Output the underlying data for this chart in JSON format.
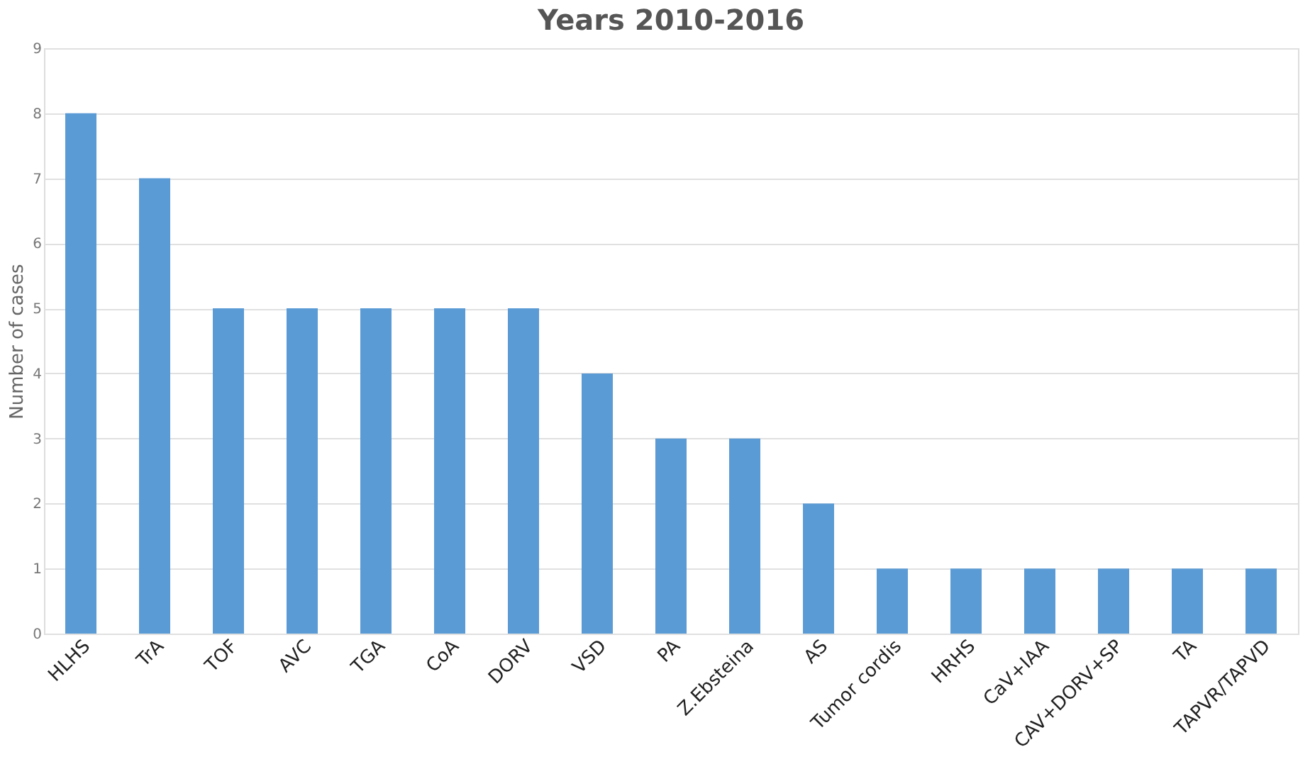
{
  "chart_data": {
    "type": "bar",
    "title": "Years  2010-2016",
    "ylabel": "Number of cases",
    "categories": [
      "HLHS",
      "TrA",
      "TOF",
      "AVC",
      "TGA",
      "CoA",
      "DORV",
      "VSD",
      "PA",
      "Z.Ebsteina",
      "AS",
      "Tumor cordis",
      "HRHS",
      "CaV+IAA",
      "CAV+DORV+SP",
      "TA",
      "TAPVR/TAPVD"
    ],
    "values": [
      8,
      7,
      5,
      5,
      5,
      5,
      5,
      4,
      3,
      3,
      2,
      1,
      1,
      1,
      1,
      1,
      1
    ],
    "color": "#5b9bd5",
    "ylim": [
      0,
      9
    ],
    "yticks": [
      0,
      1,
      2,
      3,
      4,
      5,
      6,
      7,
      8,
      9
    ],
    "grid": "y"
  }
}
